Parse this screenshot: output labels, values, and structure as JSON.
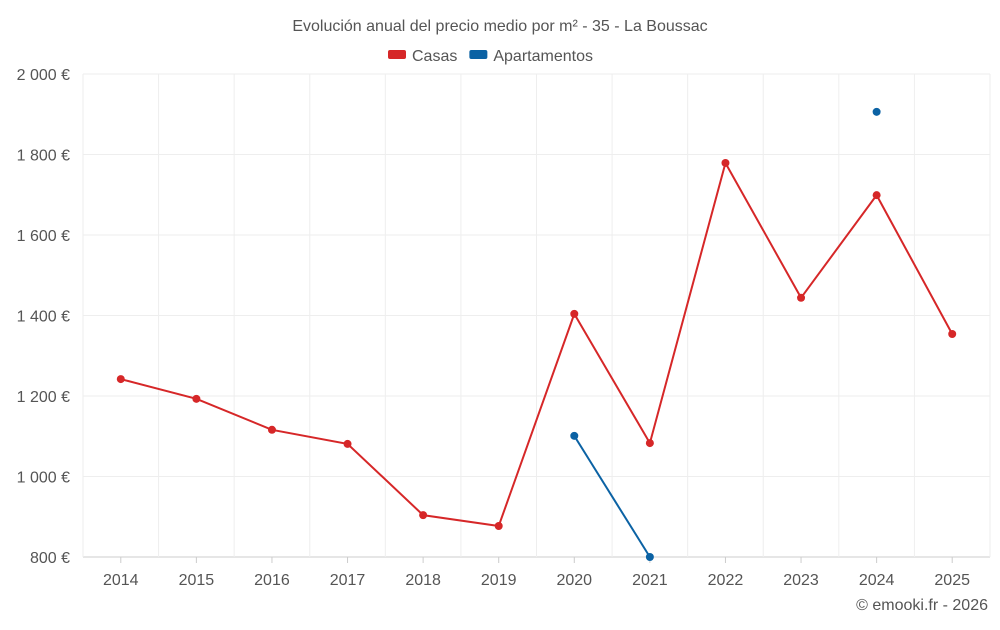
{
  "chart_data": {
    "type": "line",
    "title": "Evolución anual del precio medio por m² - 35 - La Boussac",
    "xlabel": "",
    "ylabel": "",
    "categories": [
      "2014",
      "2015",
      "2016",
      "2017",
      "2018",
      "2019",
      "2020",
      "2021",
      "2022",
      "2023",
      "2024",
      "2025"
    ],
    "ylim": [
      800,
      2000
    ],
    "yticks": [
      800,
      1000,
      1200,
      1400,
      1600,
      1800,
      2000
    ],
    "ytick_labels": [
      "800 €",
      "1 000 €",
      "1 200 €",
      "1 400 €",
      "1 600 €",
      "1 800 €",
      "2 000 €"
    ],
    "grid": true,
    "legend_position": "top-center",
    "series": [
      {
        "name": "Casas",
        "color": "#d62728",
        "values": [
          1242,
          1193,
          1116,
          1081,
          904,
          877,
          1404,
          1083,
          1779,
          1444,
          1699,
          1354
        ]
      },
      {
        "name": "Apartamentos",
        "color": "#0b62a4",
        "values": [
          null,
          null,
          null,
          null,
          null,
          null,
          1101,
          800,
          null,
          null,
          1906,
          null
        ]
      }
    ]
  },
  "credit": "© emooki.fr - 2026"
}
